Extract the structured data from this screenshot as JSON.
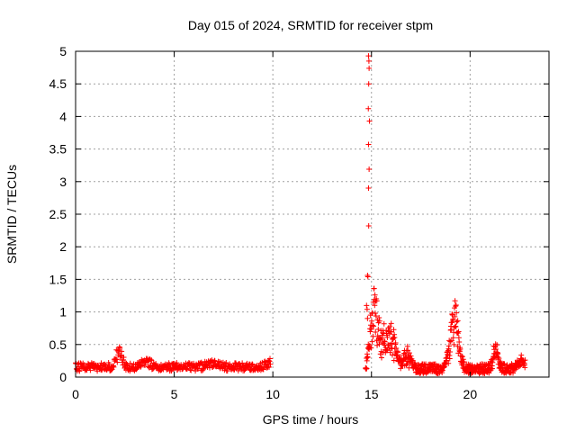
{
  "chart_data": {
    "type": "scatter",
    "title": "Day 015 of 2024, SRMTID for receiver stpm",
    "xlabel": "GPS time / hours",
    "ylabel": "SRMTID / TECUs",
    "xlim": [
      0,
      24
    ],
    "ylim": [
      0,
      5
    ],
    "xticks": [
      0,
      5,
      10,
      15,
      20
    ],
    "xtick_labels": [
      "0",
      "5",
      "10",
      "15",
      "20"
    ],
    "yticks": [
      0,
      0.5,
      1,
      1.5,
      2,
      2.5,
      3,
      3.5,
      4,
      4.5,
      5
    ],
    "ytick_labels": [
      "0",
      "0.5",
      "1",
      "1.5",
      "2",
      "2.5",
      "3",
      "3.5",
      "4",
      "4.5",
      "5"
    ],
    "grid": true,
    "marker": "plus",
    "series_color": "#ff0000",
    "spike_points": [
      {
        "x": 14.85,
        "y": 4.93
      },
      {
        "x": 14.87,
        "y": 4.85
      },
      {
        "x": 14.88,
        "y": 4.74
      },
      {
        "x": 14.86,
        "y": 4.5
      },
      {
        "x": 14.84,
        "y": 4.12
      },
      {
        "x": 14.9,
        "y": 3.93
      },
      {
        "x": 14.85,
        "y": 3.57
      },
      {
        "x": 14.88,
        "y": 3.19
      },
      {
        "x": 14.85,
        "y": 2.9
      },
      {
        "x": 14.86,
        "y": 2.32
      },
      {
        "x": 14.8,
        "y": 1.56
      },
      {
        "x": 14.82,
        "y": 1.54
      },
      {
        "x": 14.75,
        "y": 1.1
      },
      {
        "x": 14.78,
        "y": 1.04
      },
      {
        "x": 14.8,
        "y": 0.9
      }
    ],
    "segments": [
      {
        "start": 0.0,
        "end": 9.9,
        "step": 0.022,
        "base": 0.15,
        "noise": 0.13,
        "bumps": [
          {
            "x": 2.2,
            "h": 0.35,
            "w": 0.2
          },
          {
            "x": 3.6,
            "h": 0.1,
            "w": 0.3
          },
          {
            "x": 7.0,
            "h": 0.08,
            "w": 0.4
          },
          {
            "x": 9.8,
            "h": 0.08,
            "w": 0.2
          }
        ]
      },
      {
        "start": 14.7,
        "end": 22.8,
        "step": 0.014,
        "base": 0.12,
        "noise": 0.15,
        "bumps": [
          {
            "x": 15.1,
            "h": 1.0,
            "w": 0.25
          },
          {
            "x": 15.6,
            "h": 0.6,
            "w": 0.4
          },
          {
            "x": 16.1,
            "h": 0.45,
            "w": 0.25
          },
          {
            "x": 16.8,
            "h": 0.25,
            "w": 0.3
          },
          {
            "x": 19.2,
            "h": 1.0,
            "w": 0.3
          },
          {
            "x": 21.3,
            "h": 0.35,
            "w": 0.2
          },
          {
            "x": 22.6,
            "h": 0.15,
            "w": 0.3
          }
        ]
      }
    ]
  }
}
